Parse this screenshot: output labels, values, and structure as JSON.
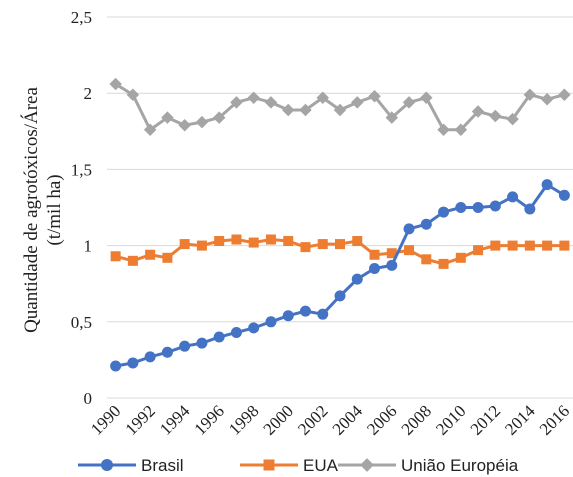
{
  "chart_data": {
    "type": "line",
    "title": "",
    "xlabel": "",
    "ylabel_lines": [
      "Quantidade de agrotóxicos/Área",
      "(t/mil ha)"
    ],
    "x": [
      1990,
      1991,
      1992,
      1993,
      1994,
      1995,
      1996,
      1997,
      1998,
      1999,
      2000,
      2001,
      2002,
      2003,
      2004,
      2005,
      2006,
      2007,
      2008,
      2009,
      2010,
      2011,
      2012,
      2013,
      2014,
      2015,
      2016
    ],
    "x_tick_labels": [
      "1990",
      "1992",
      "1994",
      "1996",
      "1998",
      "2000",
      "2002",
      "2004",
      "2006",
      "2008",
      "2010",
      "2012",
      "2014",
      "2016"
    ],
    "y_tick_labels": [
      "0",
      "0,5",
      "1",
      "1,5",
      "2",
      "2,5"
    ],
    "ylim": [
      0,
      2.5
    ],
    "grid": true,
    "legend_position": "bottom",
    "series": [
      {
        "name": "Brasil",
        "color": "#4472C4",
        "marker": "circle",
        "values": [
          0.21,
          0.23,
          0.27,
          0.3,
          0.34,
          0.36,
          0.4,
          0.43,
          0.46,
          0.5,
          0.54,
          0.57,
          0.55,
          0.67,
          0.78,
          0.85,
          0.87,
          1.11,
          1.14,
          1.22,
          1.25,
          1.25,
          1.26,
          1.32,
          1.24,
          1.4,
          1.33
        ]
      },
      {
        "name": "EUA",
        "color": "#ED7D31",
        "marker": "square",
        "values": [
          0.93,
          0.9,
          0.94,
          0.92,
          1.01,
          1.0,
          1.03,
          1.04,
          1.02,
          1.04,
          1.03,
          0.99,
          1.01,
          1.01,
          1.03,
          0.94,
          0.95,
          0.97,
          0.91,
          0.88,
          0.92,
          0.97,
          1.0,
          1.0,
          1.0,
          1.0,
          1.0
        ]
      },
      {
        "name": "União Européia",
        "color": "#A5A5A5",
        "marker": "diamond",
        "values": [
          2.06,
          1.99,
          1.76,
          1.84,
          1.79,
          1.81,
          1.84,
          1.94,
          1.97,
          1.94,
          1.89,
          1.89,
          1.97,
          1.89,
          1.94,
          1.98,
          1.84,
          1.94,
          1.97,
          1.76,
          1.76,
          1.88,
          1.85,
          1.83,
          1.99,
          1.96,
          1.99
        ]
      }
    ]
  }
}
